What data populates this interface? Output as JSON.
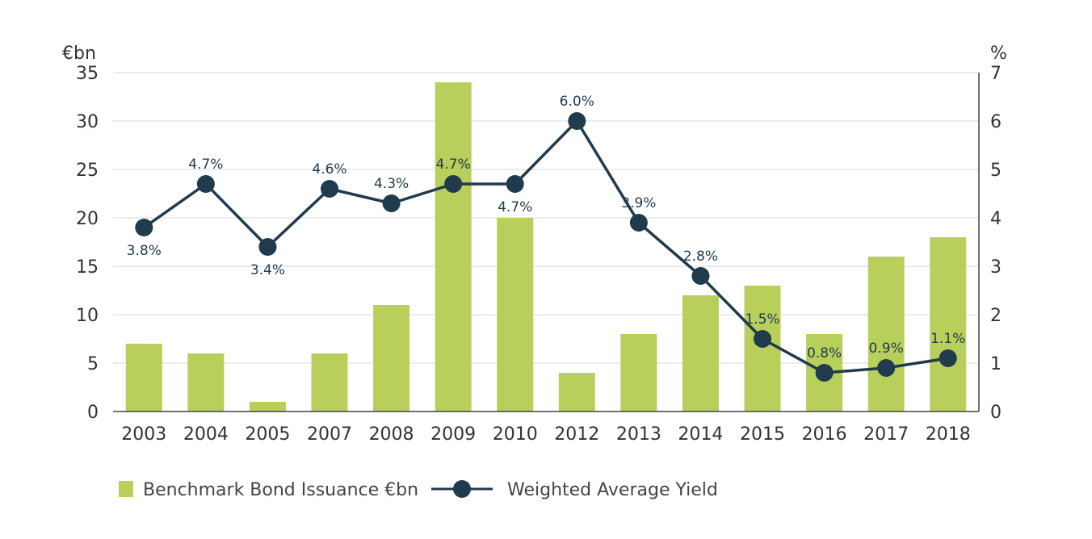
{
  "chart_data": {
    "type": "bar+line",
    "categories": [
      "2003",
      "2004",
      "2005",
      "2007",
      "2008",
      "2009",
      "2010",
      "2012",
      "2013",
      "2014",
      "2015",
      "2016",
      "2017",
      "2018"
    ],
    "series": [
      {
        "name": "Benchmark Bond Issuance €bn",
        "type": "bar",
        "axis": "left",
        "color": "#b8cf5c",
        "values": [
          7,
          6,
          1,
          6,
          11,
          34,
          20,
          4,
          8,
          12,
          13,
          8,
          16,
          18
        ]
      },
      {
        "name": "Weighted Average Yield",
        "type": "line",
        "axis": "right",
        "color": "#1f3b4d",
        "values": [
          3.8,
          4.7,
          3.4,
          4.6,
          4.3,
          4.7,
          4.7,
          6.0,
          3.9,
          2.8,
          1.5,
          0.8,
          0.9,
          1.1
        ],
        "labels": [
          "3.8%",
          "4.7%",
          "3.4%",
          "4.6%",
          "4.3%",
          "4.7%",
          "4.7%",
          "6.0%",
          "3.9%",
          "2.8%",
          "1.5%",
          "0.8%",
          "0.9%",
          "1.1%"
        ],
        "label_positions": [
          "below",
          "above",
          "below",
          "above",
          "above",
          "above",
          "below",
          "above",
          "above",
          "above",
          "above",
          "above",
          "above",
          "above"
        ]
      }
    ],
    "y_left": {
      "unit": "€bn",
      "ylim": [
        0,
        35
      ],
      "ticks": [
        0,
        5,
        10,
        15,
        20,
        25,
        30,
        35
      ]
    },
    "y_right": {
      "unit": "%",
      "ylim": [
        0,
        7
      ],
      "ticks": [
        0,
        1,
        2,
        3,
        4,
        5,
        6,
        7
      ]
    },
    "grid": true,
    "legend_position": "bottom-left"
  }
}
